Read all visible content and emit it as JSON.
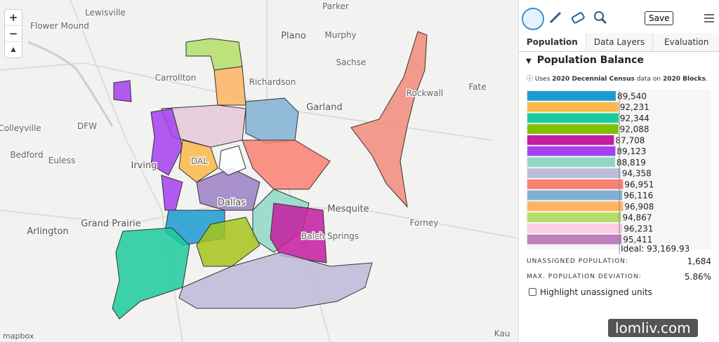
{
  "map": {
    "zoom_in": "+",
    "zoom_out": "−",
    "compass": "▲",
    "places": [
      {
        "label": "Lewisville"
      },
      {
        "label": "Flower Mound"
      },
      {
        "label": "Parker"
      },
      {
        "label": "Plano"
      },
      {
        "label": "Murphy"
      },
      {
        "label": "Sachse"
      },
      {
        "label": "Carrollton"
      },
      {
        "label": "Richardson"
      },
      {
        "label": "Garland"
      },
      {
        "label": "Fate"
      },
      {
        "label": "Rockwall"
      },
      {
        "label": "Colleyville"
      },
      {
        "label": "DFW"
      },
      {
        "label": "Bedford"
      },
      {
        "label": "Euless"
      },
      {
        "label": "Irving"
      },
      {
        "label": "DAL"
      },
      {
        "label": "Dallas"
      },
      {
        "label": "Mesquite"
      },
      {
        "label": "Forney"
      },
      {
        "label": "Arlington"
      },
      {
        "label": "Grand Prairie"
      },
      {
        "label": "Balch Springs"
      },
      {
        "label": "Kau"
      }
    ],
    "attribution": "mapbox"
  },
  "toolbar": {
    "save": "Save"
  },
  "tabs": [
    "Population",
    "Data Layers",
    "Evaluation"
  ],
  "section": {
    "title": "Population Balance",
    "note": {
      "icon": "ⓘ",
      "parts": [
        "Uses ",
        "2020 Decennial Census",
        " data on ",
        "2020 Blocks",
        "."
      ]
    }
  },
  "chart_data": {
    "type": "bar",
    "orientation": "horizontal",
    "values": [
      89540,
      92231,
      92344,
      92088,
      87708,
      89123,
      88819,
      94358,
      96951,
      96116,
      96908,
      94867,
      96231,
      95411
    ],
    "value_labels": [
      "89,540",
      "92,231",
      "92,344",
      "92,088",
      "87,708",
      "89,123",
      "88,819",
      "94,358",
      "96,951",
      "96,116",
      "96,908",
      "94,867",
      "96,231",
      "95,411"
    ],
    "colors": [
      "#1b9bd0",
      "#fbb848",
      "#1ccb9c",
      "#7fbf00",
      "#c51ca0",
      "#a440ef",
      "#8fd8c8",
      "#bebada",
      "#fb8072",
      "#80b1d3",
      "#fdb462",
      "#b3de69",
      "#fccde5",
      "#bc80bd"
    ],
    "ideal": {
      "value": 93169.93,
      "label": "Ideal: 93,169.93"
    }
  },
  "stats": [
    {
      "label": "UNASSIGNED POPULATION:",
      "value": "1,684"
    },
    {
      "label": "MAX. POPULATION DEVIATION:",
      "value": "5.86%"
    }
  ],
  "highlight_checkbox": "Highlight unassigned units",
  "watermark": "lomliv.com"
}
